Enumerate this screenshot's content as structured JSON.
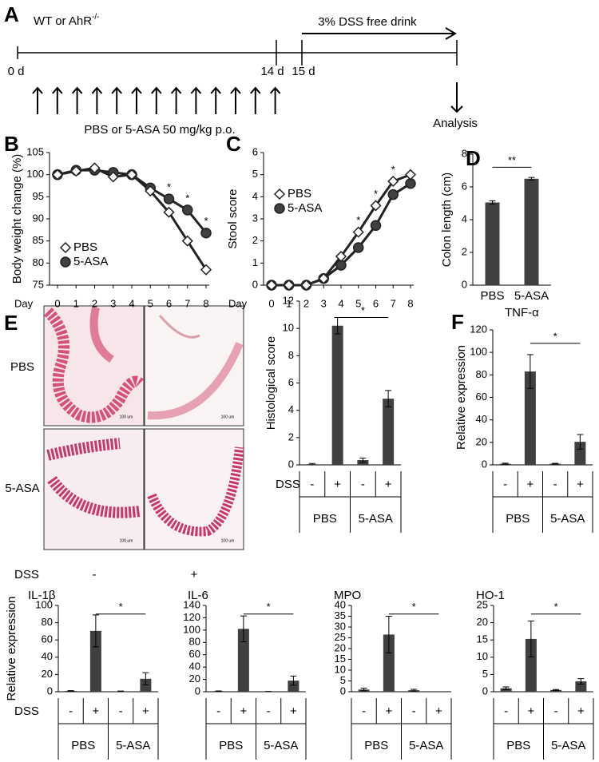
{
  "timeline": {
    "panel": "A",
    "strain": "WT or AhR",
    "strain_sup": "-/-",
    "start": "0 d",
    "day14": "14 d",
    "day15": "15 d",
    "dss": "3% DSS free drink",
    "treatment": "PBS or 5-ASA 50 mg/kg p.o.",
    "endpoint": "Analysis"
  },
  "histology": {
    "panel": "E",
    "rows": [
      "PBS",
      "5-ASA"
    ],
    "condition": "DSS",
    "columns": [
      "-",
      "+"
    ],
    "scale_bar": "100 um"
  },
  "chart_data": [
    {
      "panel": "B",
      "type": "line",
      "y_label": "Body weight change (%)",
      "x_label": "Day",
      "x": [
        0,
        1,
        2,
        3,
        4,
        5,
        6,
        7,
        8
      ],
      "xlim": [
        0,
        8
      ],
      "xticks": [
        0,
        1,
        2,
        3,
        4,
        5,
        6,
        7,
        8
      ],
      "ylim": [
        75,
        105
      ],
      "yticks": [
        75,
        80,
        85,
        90,
        95,
        100,
        105
      ],
      "legend": "lower left",
      "series": [
        {
          "name": "PBS",
          "marker": "diamond",
          "color": "#ffffff",
          "values": [
            100,
            100.8,
            101.5,
            99.5,
            100,
            96.3,
            91.5,
            85,
            78.5
          ]
        },
        {
          "name": "5-ASA",
          "marker": "circle",
          "color": "#404040",
          "values": [
            100,
            101,
            101,
            100.5,
            100,
            97,
            94.5,
            92,
            86.8
          ]
        }
      ],
      "significance": [
        null,
        null,
        null,
        null,
        null,
        null,
        "*",
        "*",
        "*"
      ]
    },
    {
      "panel": "C",
      "type": "line",
      "y_label": "Stool score",
      "x_label": "Day",
      "x": [
        0,
        1,
        2,
        3,
        4,
        5,
        6,
        7,
        8
      ],
      "xlim": [
        0,
        8
      ],
      "xticks": [
        0,
        1,
        2,
        3,
        4,
        5,
        6,
        7,
        8
      ],
      "ylim": [
        0,
        6
      ],
      "yticks": [
        0,
        1,
        2,
        3,
        4,
        5,
        6
      ],
      "legend": "upper left",
      "series": [
        {
          "name": "PBS",
          "marker": "diamond",
          "color": "#ffffff",
          "values": [
            0,
            0,
            0,
            0.3,
            1.3,
            2.4,
            3.6,
            4.7,
            5.0
          ]
        },
        {
          "name": "5-ASA",
          "marker": "circle",
          "color": "#404040",
          "values": [
            0,
            0,
            0,
            0.3,
            0.9,
            1.7,
            2.7,
            4.1,
            4.6
          ]
        }
      ],
      "significance": [
        null,
        null,
        null,
        null,
        null,
        "*",
        "*",
        "*",
        null
      ]
    },
    {
      "panel": "D",
      "type": "bar",
      "y_label": "Colon length (cm)",
      "categories": [
        "PBS",
        "5-ASA"
      ],
      "values": [
        5.05,
        6.5
      ],
      "errors": [
        0.1,
        0.08
      ],
      "ylim": [
        0,
        8
      ],
      "yticks": [
        0,
        2,
        4,
        6,
        8
      ],
      "color": "#404040",
      "significance": "**"
    },
    {
      "type": "bar",
      "y_label": "Histological score",
      "category_title": "DSS",
      "categories": [
        "-",
        "+",
        "-",
        "+"
      ],
      "groups": [
        "PBS",
        "5-ASA"
      ],
      "values": [
        0.05,
        10.2,
        0.35,
        4.85
      ],
      "errors": [
        0.05,
        0.6,
        0.15,
        0.6
      ],
      "ylim": [
        0,
        12
      ],
      "yticks": [
        0,
        2,
        4,
        6,
        8,
        10,
        12
      ],
      "color": "#404040",
      "significance": "*"
    },
    {
      "panel": "F",
      "type": "bar",
      "title": "TNF-α",
      "y_label": "Relative expression",
      "categories": [
        "-",
        "+",
        "-",
        "+"
      ],
      "groups": [
        "PBS",
        "5-ASA"
      ],
      "values": [
        1,
        83,
        1,
        20.5
      ],
      "errors": [
        0.5,
        15,
        0.3,
        6.5
      ],
      "ylim": [
        0,
        120
      ],
      "yticks": [
        0,
        20,
        40,
        60,
        80,
        100,
        120
      ],
      "color": "#404040",
      "significance": "*"
    },
    {
      "type": "bar",
      "title": "IL-1β",
      "y_label": "Relative expression",
      "category_title": "DSS",
      "categories": [
        "-",
        "+",
        "-",
        "+"
      ],
      "groups": [
        "PBS",
        "5-ASA"
      ],
      "values": [
        1,
        70.5,
        0.5,
        15
      ],
      "errors": [
        0.3,
        18.5,
        0.3,
        7
      ],
      "ylim": [
        0,
        100
      ],
      "yticks": [
        0,
        20,
        40,
        60,
        80,
        100
      ],
      "color": "#404040",
      "significance": "*"
    },
    {
      "type": "bar",
      "title": "IL-6",
      "categories": [
        "-",
        "+",
        "-",
        "+"
      ],
      "groups": [
        "PBS",
        "5-ASA"
      ],
      "values": [
        1,
        102,
        0.3,
        18
      ],
      "errors": [
        0.3,
        21,
        0.2,
        7.5
      ],
      "ylim": [
        0,
        140
      ],
      "yticks": [
        0,
        20,
        40,
        60,
        80,
        100,
        120,
        140
      ],
      "color": "#404040",
      "significance": "*"
    },
    {
      "type": "bar",
      "title": "MPO",
      "categories": [
        "-",
        "+",
        "-",
        "+"
      ],
      "groups": [
        "PBS",
        "5-ASA"
      ],
      "values": [
        1,
        26.5,
        0.7,
        0
      ],
      "errors": [
        0.6,
        8.5,
        0.4,
        0
      ],
      "ylim": [
        0,
        40
      ],
      "yticks": [
        0,
        5,
        10,
        15,
        20,
        25,
        30,
        35,
        40
      ],
      "color": "#404040",
      "significance": "*"
    },
    {
      "type": "bar",
      "title": "HO-1",
      "categories": [
        "-",
        "+",
        "-",
        "+"
      ],
      "groups": [
        "PBS",
        "5-ASA"
      ],
      "values": [
        1,
        15.3,
        0.5,
        3
      ],
      "errors": [
        0.4,
        5.2,
        0.15,
        0.8
      ],
      "ylim": [
        0,
        25
      ],
      "yticks": [
        0,
        5,
        10,
        15,
        20,
        25
      ],
      "color": "#404040",
      "significance": "*"
    }
  ]
}
